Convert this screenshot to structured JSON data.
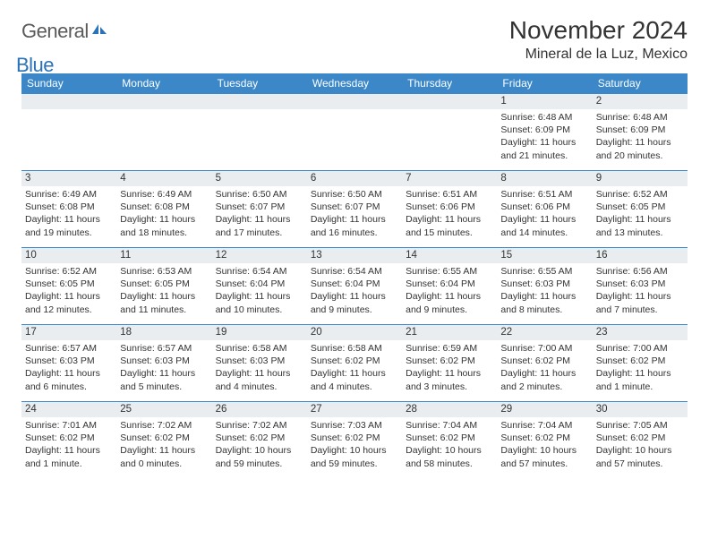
{
  "brand": {
    "part1": "General",
    "part2": "Blue"
  },
  "title": "November 2024",
  "location": "Mineral de la Luz, Mexico",
  "colors": {
    "header_bg": "#3b87c8",
    "header_text": "#ffffff",
    "band_bg": "#e9edef",
    "band_border": "#3b87c8",
    "text": "#333333",
    "logo_gray": "#5a5a5a",
    "logo_blue": "#2b72b9",
    "page_bg": "#ffffff"
  },
  "typography": {
    "title_fontsize": 28,
    "location_fontsize": 16,
    "weekday_fontsize": 12,
    "daynum_fontsize": 11.5,
    "detail_fontsize": 10.5
  },
  "weekdays": [
    "Sunday",
    "Monday",
    "Tuesday",
    "Wednesday",
    "Thursday",
    "Friday",
    "Saturday"
  ],
  "weeks": [
    [
      null,
      null,
      null,
      null,
      null,
      {
        "num": "1",
        "sunrise": "Sunrise: 6:48 AM",
        "sunset": "Sunset: 6:09 PM",
        "daylight": "Daylight: 11 hours and 21 minutes."
      },
      {
        "num": "2",
        "sunrise": "Sunrise: 6:48 AM",
        "sunset": "Sunset: 6:09 PM",
        "daylight": "Daylight: 11 hours and 20 minutes."
      }
    ],
    [
      {
        "num": "3",
        "sunrise": "Sunrise: 6:49 AM",
        "sunset": "Sunset: 6:08 PM",
        "daylight": "Daylight: 11 hours and 19 minutes."
      },
      {
        "num": "4",
        "sunrise": "Sunrise: 6:49 AM",
        "sunset": "Sunset: 6:08 PM",
        "daylight": "Daylight: 11 hours and 18 minutes."
      },
      {
        "num": "5",
        "sunrise": "Sunrise: 6:50 AM",
        "sunset": "Sunset: 6:07 PM",
        "daylight": "Daylight: 11 hours and 17 minutes."
      },
      {
        "num": "6",
        "sunrise": "Sunrise: 6:50 AM",
        "sunset": "Sunset: 6:07 PM",
        "daylight": "Daylight: 11 hours and 16 minutes."
      },
      {
        "num": "7",
        "sunrise": "Sunrise: 6:51 AM",
        "sunset": "Sunset: 6:06 PM",
        "daylight": "Daylight: 11 hours and 15 minutes."
      },
      {
        "num": "8",
        "sunrise": "Sunrise: 6:51 AM",
        "sunset": "Sunset: 6:06 PM",
        "daylight": "Daylight: 11 hours and 14 minutes."
      },
      {
        "num": "9",
        "sunrise": "Sunrise: 6:52 AM",
        "sunset": "Sunset: 6:05 PM",
        "daylight": "Daylight: 11 hours and 13 minutes."
      }
    ],
    [
      {
        "num": "10",
        "sunrise": "Sunrise: 6:52 AM",
        "sunset": "Sunset: 6:05 PM",
        "daylight": "Daylight: 11 hours and 12 minutes."
      },
      {
        "num": "11",
        "sunrise": "Sunrise: 6:53 AM",
        "sunset": "Sunset: 6:05 PM",
        "daylight": "Daylight: 11 hours and 11 minutes."
      },
      {
        "num": "12",
        "sunrise": "Sunrise: 6:54 AM",
        "sunset": "Sunset: 6:04 PM",
        "daylight": "Daylight: 11 hours and 10 minutes."
      },
      {
        "num": "13",
        "sunrise": "Sunrise: 6:54 AM",
        "sunset": "Sunset: 6:04 PM",
        "daylight": "Daylight: 11 hours and 9 minutes."
      },
      {
        "num": "14",
        "sunrise": "Sunrise: 6:55 AM",
        "sunset": "Sunset: 6:04 PM",
        "daylight": "Daylight: 11 hours and 9 minutes."
      },
      {
        "num": "15",
        "sunrise": "Sunrise: 6:55 AM",
        "sunset": "Sunset: 6:03 PM",
        "daylight": "Daylight: 11 hours and 8 minutes."
      },
      {
        "num": "16",
        "sunrise": "Sunrise: 6:56 AM",
        "sunset": "Sunset: 6:03 PM",
        "daylight": "Daylight: 11 hours and 7 minutes."
      }
    ],
    [
      {
        "num": "17",
        "sunrise": "Sunrise: 6:57 AM",
        "sunset": "Sunset: 6:03 PM",
        "daylight": "Daylight: 11 hours and 6 minutes."
      },
      {
        "num": "18",
        "sunrise": "Sunrise: 6:57 AM",
        "sunset": "Sunset: 6:03 PM",
        "daylight": "Daylight: 11 hours and 5 minutes."
      },
      {
        "num": "19",
        "sunrise": "Sunrise: 6:58 AM",
        "sunset": "Sunset: 6:03 PM",
        "daylight": "Daylight: 11 hours and 4 minutes."
      },
      {
        "num": "20",
        "sunrise": "Sunrise: 6:58 AM",
        "sunset": "Sunset: 6:02 PM",
        "daylight": "Daylight: 11 hours and 4 minutes."
      },
      {
        "num": "21",
        "sunrise": "Sunrise: 6:59 AM",
        "sunset": "Sunset: 6:02 PM",
        "daylight": "Daylight: 11 hours and 3 minutes."
      },
      {
        "num": "22",
        "sunrise": "Sunrise: 7:00 AM",
        "sunset": "Sunset: 6:02 PM",
        "daylight": "Daylight: 11 hours and 2 minutes."
      },
      {
        "num": "23",
        "sunrise": "Sunrise: 7:00 AM",
        "sunset": "Sunset: 6:02 PM",
        "daylight": "Daylight: 11 hours and 1 minute."
      }
    ],
    [
      {
        "num": "24",
        "sunrise": "Sunrise: 7:01 AM",
        "sunset": "Sunset: 6:02 PM",
        "daylight": "Daylight: 11 hours and 1 minute."
      },
      {
        "num": "25",
        "sunrise": "Sunrise: 7:02 AM",
        "sunset": "Sunset: 6:02 PM",
        "daylight": "Daylight: 11 hours and 0 minutes."
      },
      {
        "num": "26",
        "sunrise": "Sunrise: 7:02 AM",
        "sunset": "Sunset: 6:02 PM",
        "daylight": "Daylight: 10 hours and 59 minutes."
      },
      {
        "num": "27",
        "sunrise": "Sunrise: 7:03 AM",
        "sunset": "Sunset: 6:02 PM",
        "daylight": "Daylight: 10 hours and 59 minutes."
      },
      {
        "num": "28",
        "sunrise": "Sunrise: 7:04 AM",
        "sunset": "Sunset: 6:02 PM",
        "daylight": "Daylight: 10 hours and 58 minutes."
      },
      {
        "num": "29",
        "sunrise": "Sunrise: 7:04 AM",
        "sunset": "Sunset: 6:02 PM",
        "daylight": "Daylight: 10 hours and 57 minutes."
      },
      {
        "num": "30",
        "sunrise": "Sunrise: 7:05 AM",
        "sunset": "Sunset: 6:02 PM",
        "daylight": "Daylight: 10 hours and 57 minutes."
      }
    ]
  ]
}
